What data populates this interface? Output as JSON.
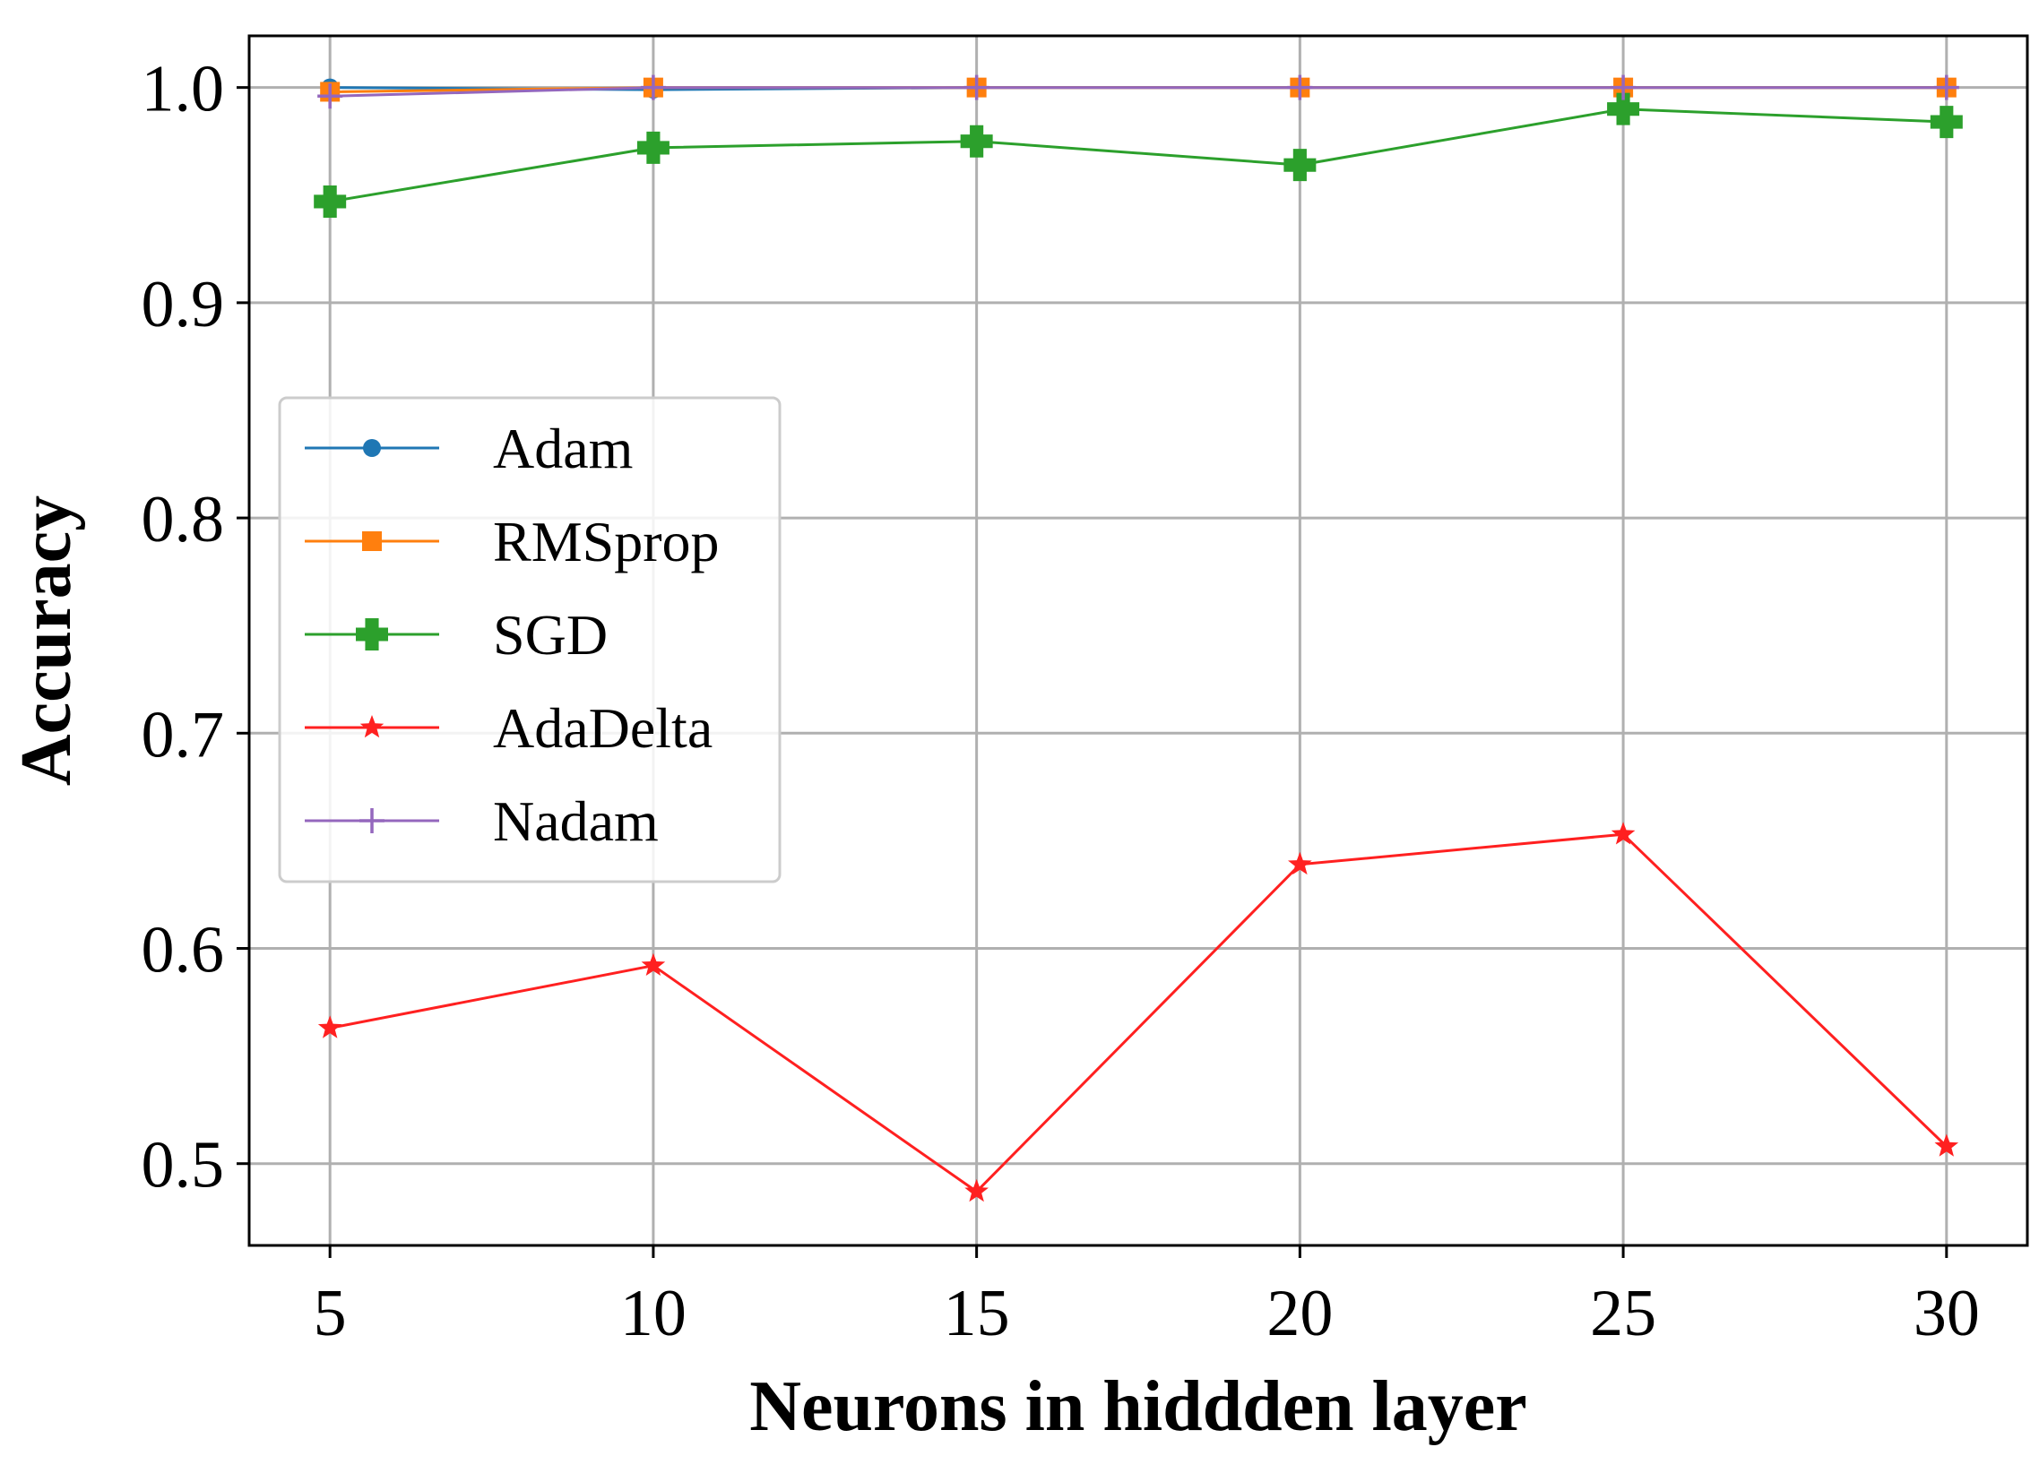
{
  "chart_data": {
    "type": "line",
    "title": "",
    "xlabel": "Neurons in hiddden layer",
    "ylabel": "Accuracy",
    "x": [
      5,
      10,
      15,
      20,
      25,
      30
    ],
    "xlim": [
      3.75,
      31.25
    ],
    "ylim": [
      0.462,
      1.024
    ],
    "xticks": [
      5,
      10,
      15,
      20,
      25,
      30
    ],
    "xtick_labels": [
      "5",
      "10",
      "15",
      "20",
      "25",
      "30"
    ],
    "yticks": [
      0.5,
      0.6,
      0.7,
      0.8,
      0.9,
      1.0
    ],
    "ytick_labels": [
      "0.5",
      "0.6",
      "0.7",
      "0.8",
      "0.9",
      "1.0"
    ],
    "grid": true,
    "legend_position": "center-left",
    "series": [
      {
        "name": "Adam",
        "color": "#1f77b4",
        "marker": "circle",
        "values": [
          1.0,
          0.999,
          1.0,
          1.0,
          1.0,
          1.0
        ]
      },
      {
        "name": "RMSprop",
        "color": "#ff7f0e",
        "marker": "square",
        "values": [
          0.998,
          1.0,
          1.0,
          1.0,
          1.0,
          1.0
        ]
      },
      {
        "name": "SGD",
        "color": "#2ca02c",
        "marker": "plus-filled",
        "values": [
          0.947,
          0.972,
          0.975,
          0.964,
          0.99,
          0.984
        ]
      },
      {
        "name": "AdaDelta",
        "color": "#ff2020",
        "marker": "star",
        "values": [
          0.563,
          0.592,
          0.487,
          0.639,
          0.653,
          0.508
        ]
      },
      {
        "name": "Nadam",
        "color": "#9467bd",
        "marker": "plus",
        "values": [
          0.996,
          1.0,
          1.0,
          1.0,
          1.0,
          1.0
        ]
      }
    ]
  }
}
